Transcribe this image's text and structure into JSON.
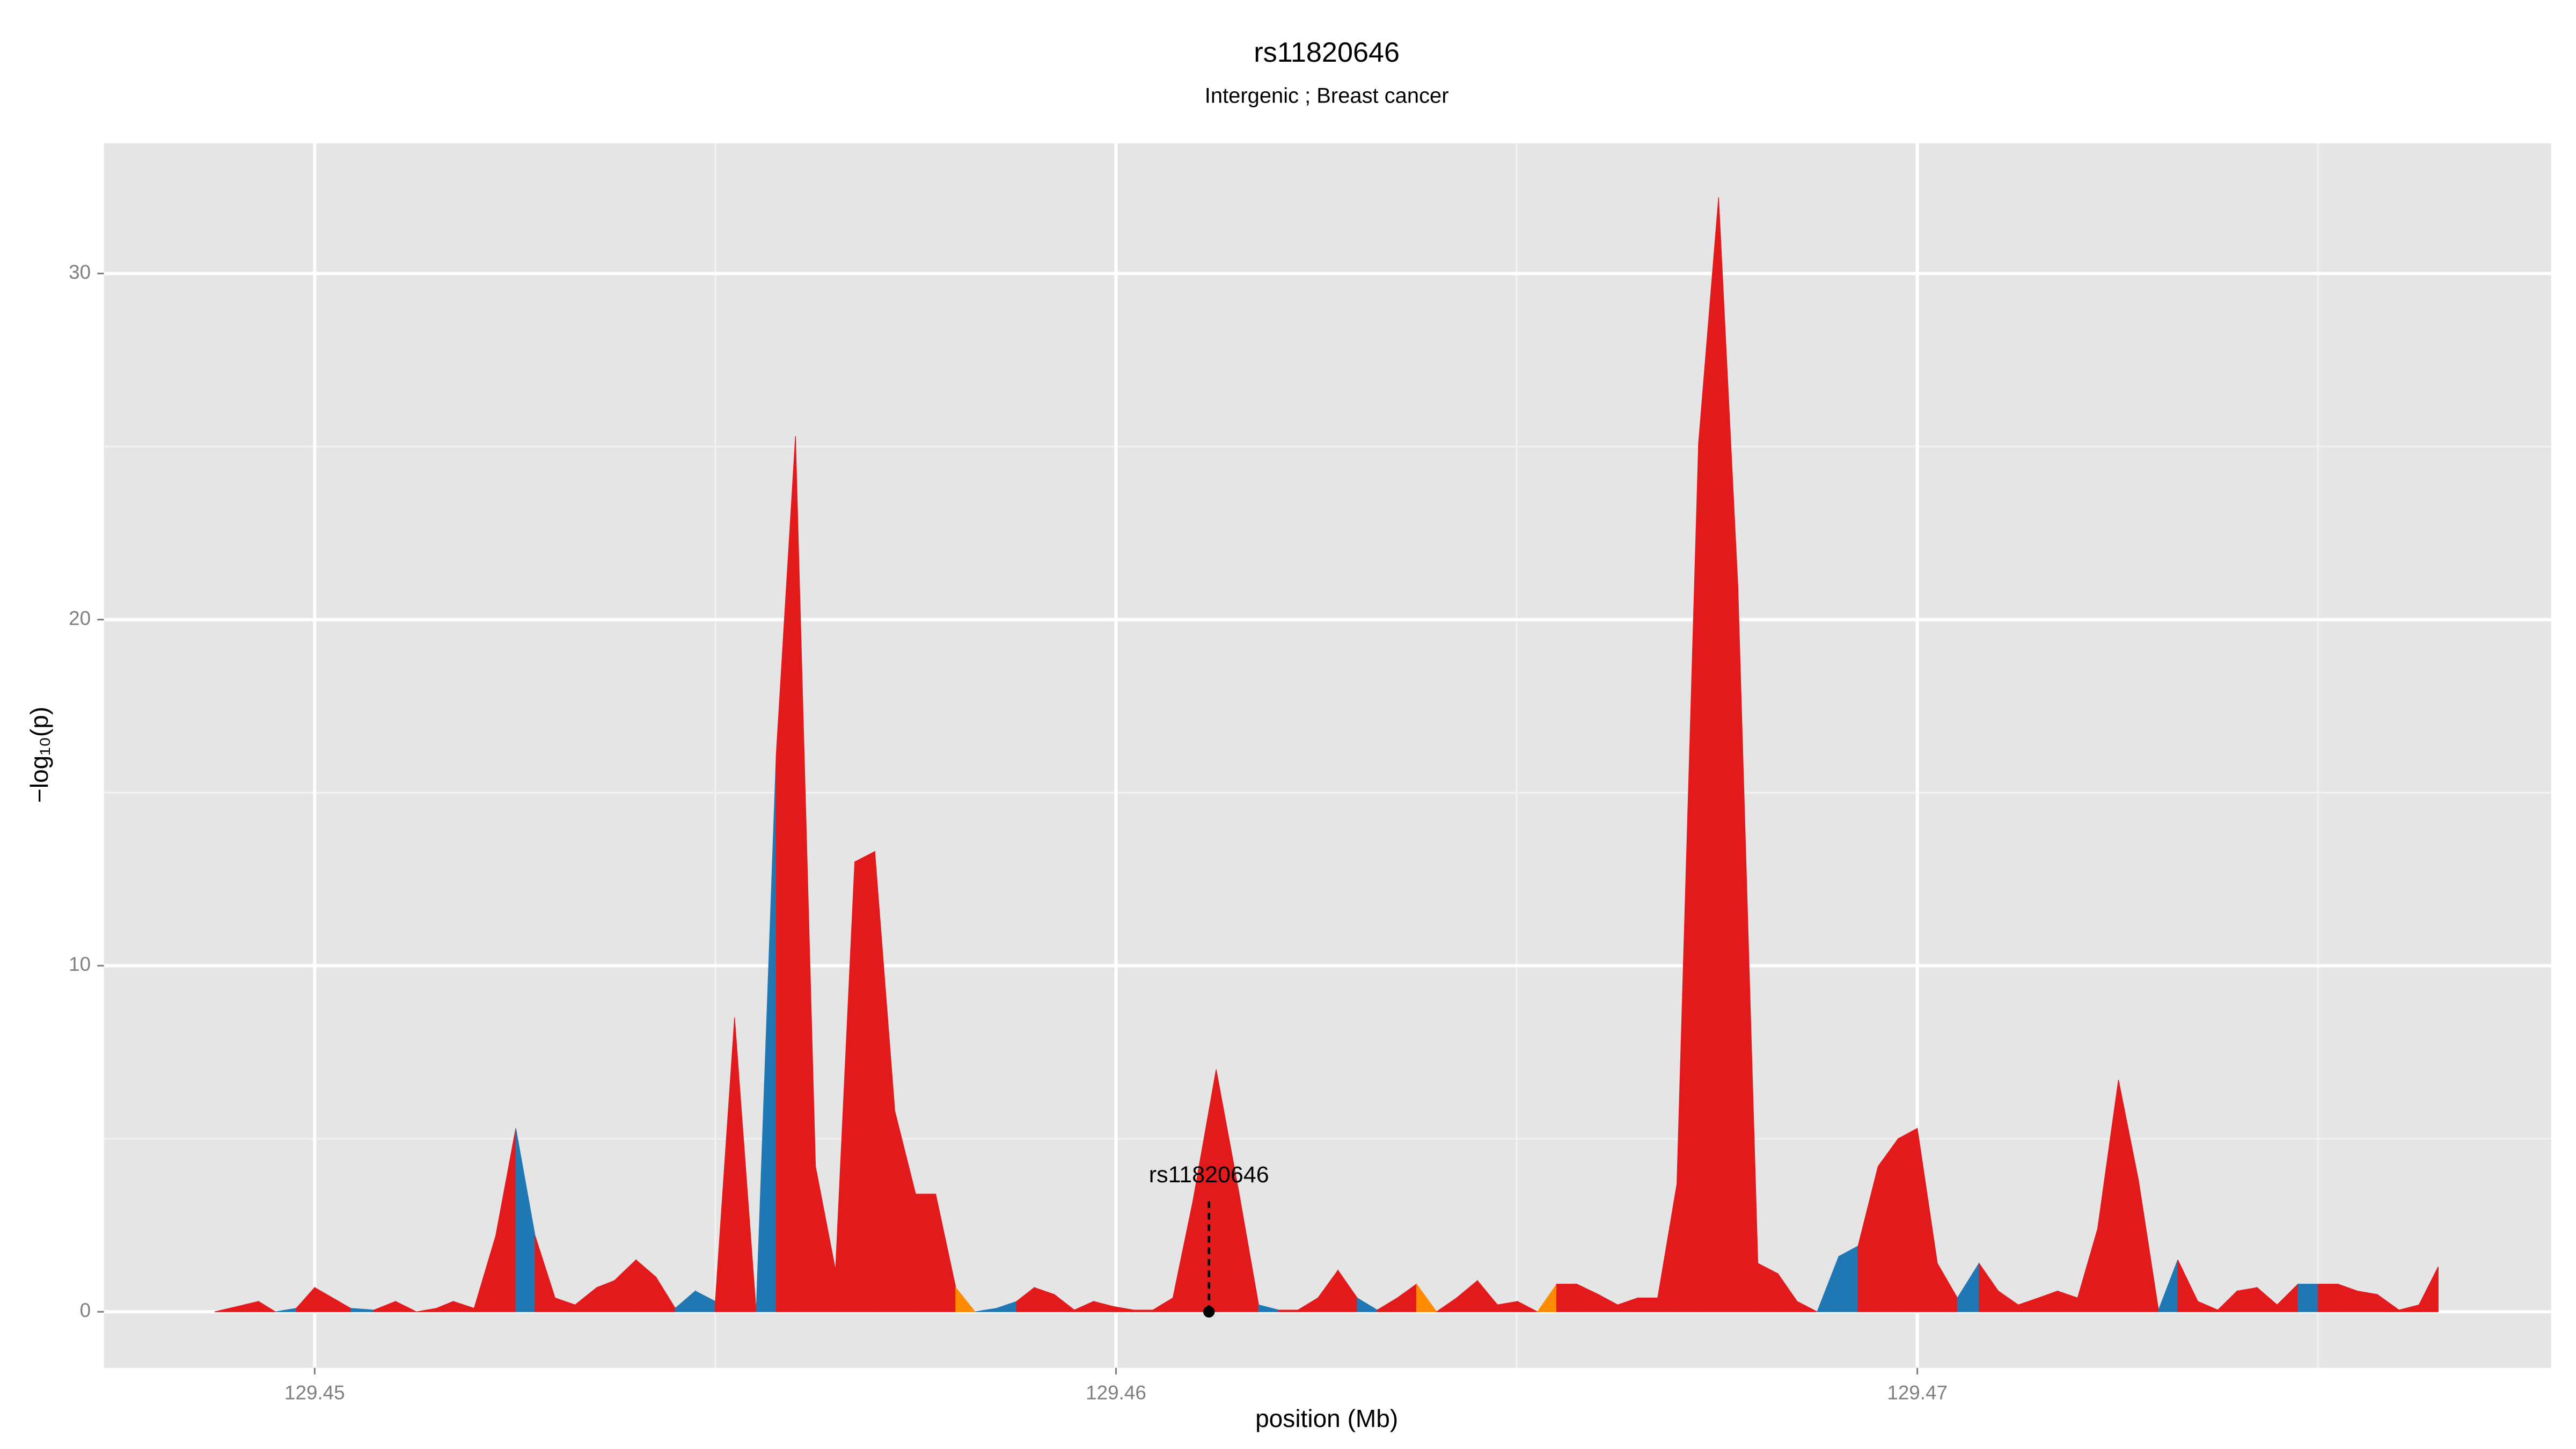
{
  "chart_data": {
    "type": "area",
    "title": "rs11820646",
    "subtitle": "Intergenic ; Breast cancer",
    "x_label": "position (Mb)",
    "y_label": "−log₁₀(p)",
    "xlim": [
      129.44737,
      129.47791
    ],
    "ylim": [
      -1.62,
      33.76
    ],
    "xticks": [
      129.45,
      129.46,
      129.47
    ],
    "yticks": [
      0,
      10,
      20,
      30
    ],
    "x_minor_grid": [
      129.455,
      129.465,
      129.475
    ],
    "y_minor_grid": [
      5,
      15,
      25
    ],
    "grid": true,
    "x": [
      129.44875,
      129.44912,
      129.4493,
      129.44951,
      129.44977,
      129.45,
      129.45045,
      129.45074,
      129.45101,
      129.45127,
      129.45152,
      129.45173,
      129.45199,
      129.45226,
      129.45251,
      129.45275,
      129.453,
      129.45325,
      129.45352,
      129.45374,
      129.45401,
      129.45426,
      129.4545,
      129.45475,
      129.455,
      129.45524,
      129.45551,
      129.45576,
      129.456,
      129.45625,
      129.4565,
      129.45674,
      129.45699,
      129.45724,
      129.4575,
      129.45775,
      129.458,
      129.45824,
      129.45851,
      129.45876,
      129.45898,
      129.45923,
      129.45948,
      129.45972,
      129.45997,
      129.46022,
      129.46046,
      129.46071,
      129.46096,
      129.46125,
      129.46153,
      129.46178,
      129.46203,
      129.46227,
      129.46252,
      129.46277,
      129.46301,
      129.46326,
      129.46351,
      129.46375,
      129.464,
      129.46425,
      129.46451,
      129.46476,
      129.46501,
      129.46526,
      129.4655,
      129.46575,
      129.46602,
      129.46626,
      129.46651,
      129.46676,
      129.467,
      129.46727,
      129.46752,
      129.46776,
      129.46801,
      129.46826,
      129.4685,
      129.46875,
      129.46902,
      129.46926,
      129.46951,
      129.46976,
      129.47,
      129.47025,
      129.4705,
      129.47077,
      129.47101,
      129.47126,
      129.47151,
      129.47175,
      129.472,
      129.47225,
      129.47251,
      129.47276,
      129.47301,
      129.47325,
      129.4735,
      129.47375,
      129.47399,
      129.47424,
      129.47449,
      129.47475,
      129.475,
      129.47525,
      129.47549,
      129.47574,
      129.47601,
      129.47626,
      129.4765
    ],
    "values": [
      0,
      0.2,
      0.3,
      0,
      0.1,
      0.7,
      0.1,
      0.05,
      0.3,
      0,
      0.1,
      0.3,
      0.1,
      2.2,
      5.3,
      2.2,
      0.4,
      0.2,
      0.7,
      0.9,
      1.5,
      1.0,
      0.1,
      0.6,
      0.3,
      8.5,
      0,
      16.1,
      25.3,
      4.2,
      1.2,
      13.0,
      13.3,
      5.8,
      3.4,
      3.4,
      0.7,
      0,
      0.1,
      0.3,
      0.7,
      0.5,
      0.05,
      0.3,
      0.15,
      0.05,
      0.05,
      0.4,
      3.2,
      7.0,
      3.5,
      0.2,
      0.05,
      0.05,
      0.4,
      1.2,
      0.4,
      0.05,
      0.4,
      0.8,
      0,
      0.4,
      0.9,
      0.2,
      0.3,
      0,
      0.8,
      0.8,
      0.5,
      0.2,
      0.4,
      0.4,
      3.7,
      25.1,
      32.2,
      21.0,
      1.4,
      1.1,
      0.3,
      0,
      1.6,
      1.9,
      4.2,
      5.0,
      5.3,
      1.4,
      0.4,
      1.4,
      0.6,
      0.2,
      0.4,
      0.6,
      0.4,
      2.4,
      6.7,
      3.8,
      0.05,
      1.5,
      0.3,
      0.05,
      0.6,
      0.7,
      0.2,
      0.8,
      0.8,
      0.8,
      0.6,
      0.5,
      0.05,
      0.2,
      1.3
    ],
    "colors": [
      "#e31a1c",
      "#e31a1c",
      "#e31a1c",
      "#e31a1c",
      "#1f78b4",
      "#e31a1c",
      "#e31a1c",
      "#1f78b4",
      "#e31a1c",
      "#e31a1c",
      "#e31a1c",
      "#e31a1c",
      "#e31a1c",
      "#e31a1c",
      "#e31a1c",
      "#1f78b4",
      "#e31a1c",
      "#e31a1c",
      "#e31a1c",
      "#e31a1c",
      "#e31a1c",
      "#e31a1c",
      "#e31a1c",
      "#1f78b4",
      "#1f78b4",
      "#e31a1c",
      "#e31a1c",
      "#1f78b4",
      "#e31a1c",
      "#e31a1c",
      "#e31a1c",
      "#e31a1c",
      "#e31a1c",
      "#e31a1c",
      "#e31a1c",
      "#e31a1c",
      "#e31a1c",
      "#ff8c00",
      "#1f78b4",
      "#1f78b4",
      "#e31a1c",
      "#e31a1c",
      "#e31a1c",
      "#e31a1c",
      "#e31a1c",
      "#e31a1c",
      "#e31a1c",
      "#e31a1c",
      "#e31a1c",
      "#e31a1c",
      "#e31a1c",
      "#e31a1c",
      "#1f78b4",
      "#e31a1c",
      "#e31a1c",
      "#e31a1c",
      "#e31a1c",
      "#1f78b4",
      "#e31a1c",
      "#e31a1c",
      "#ff8c00",
      "#e31a1c",
      "#e31a1c",
      "#e31a1c",
      "#e31a1c",
      "#e31a1c",
      "#ff8c00",
      "#e31a1c",
      "#e31a1c",
      "#e31a1c",
      "#e31a1c",
      "#e31a1c",
      "#e31a1c",
      "#e31a1c",
      "#e31a1c",
      "#e31a1c",
      "#e31a1c",
      "#e31a1c",
      "#e31a1c",
      "#e31a1c",
      "#1f78b4",
      "#1f78b4",
      "#e31a1c",
      "#e31a1c",
      "#e31a1c",
      "#e31a1c",
      "#e31a1c",
      "#1f78b4",
      "#e31a1c",
      "#e31a1c",
      "#e31a1c",
      "#e31a1c",
      "#e31a1c",
      "#e31a1c",
      "#e31a1c",
      "#e31a1c",
      "#e31a1c",
      "#1f78b4",
      "#e31a1c",
      "#e31a1c",
      "#e31a1c",
      "#e31a1c",
      "#e31a1c",
      "#e31a1c",
      "#1f78b4",
      "#e31a1c",
      "#e31a1c",
      "#e31a1c",
      "#e31a1c",
      "#e31a1c",
      "#e31a1c"
    ],
    "highlight": {
      "label": "rs11820646",
      "x": 129.46116,
      "y": 0,
      "line_top": 3.2
    }
  }
}
